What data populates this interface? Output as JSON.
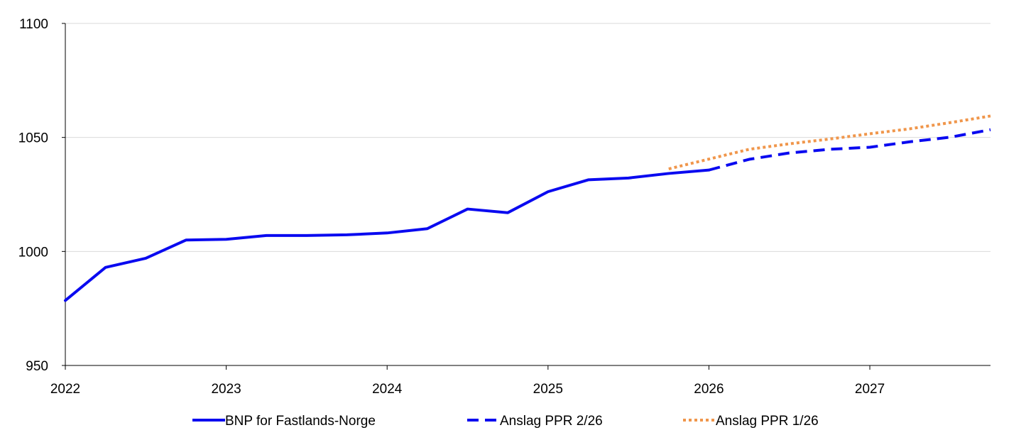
{
  "chart_data": {
    "type": "line",
    "title": "",
    "xlabel": "",
    "ylabel": "",
    "ylim": [
      950,
      1100
    ],
    "yticks": [
      950,
      1000,
      1050,
      1100
    ],
    "xlim": [
      2022,
      2027.75
    ],
    "xticks": [
      2022,
      2023,
      2024,
      2025,
      2026,
      2027
    ],
    "xtick_labels": [
      "2022",
      "2023",
      "2024",
      "2025",
      "2026",
      "2027"
    ],
    "grid": "horizontal",
    "legend_position": "bottom",
    "series": [
      {
        "name": "BNP for Fastlands-Norge",
        "color": "#0a0af0",
        "style": "solid",
        "x": [
          2022,
          2022.25,
          2022.5,
          2022.75,
          2023,
          2023.25,
          2023.5,
          2023.75,
          2024,
          2024.25,
          2024.5,
          2024.75,
          2025,
          2025.25,
          2025.5,
          2025.75,
          2026
        ],
        "y": [
          978.5,
          993,
          997,
          1005,
          1005.3,
          1007,
          1007,
          1007.3,
          1008.1,
          1010,
          1018.6,
          1017,
          1026.2,
          1031.4,
          1032.2,
          1034.2,
          1035.7
        ]
      },
      {
        "name": "Anslag PPR 2/26",
        "color": "#0a0af0",
        "style": "dashed",
        "x": [
          2026,
          2026.25,
          2026.5,
          2026.75,
          2027,
          2027.25,
          2027.5,
          2027.75
        ],
        "y": [
          1035.7,
          1040.4,
          1043.2,
          1044.8,
          1045.7,
          1048.1,
          1050.1,
          1053.4
        ]
      },
      {
        "name": "Anslag PPR 1/26",
        "color": "#f0964b",
        "style": "dotted",
        "x": [
          2025.75,
          2026,
          2026.25,
          2026.5,
          2026.75,
          2027,
          2027.25,
          2027.5,
          2027.75
        ],
        "y": [
          1036.2,
          1040.5,
          1044.8,
          1047.2,
          1049.3,
          1051.6,
          1053.8,
          1056.5,
          1059.4
        ]
      }
    ]
  }
}
